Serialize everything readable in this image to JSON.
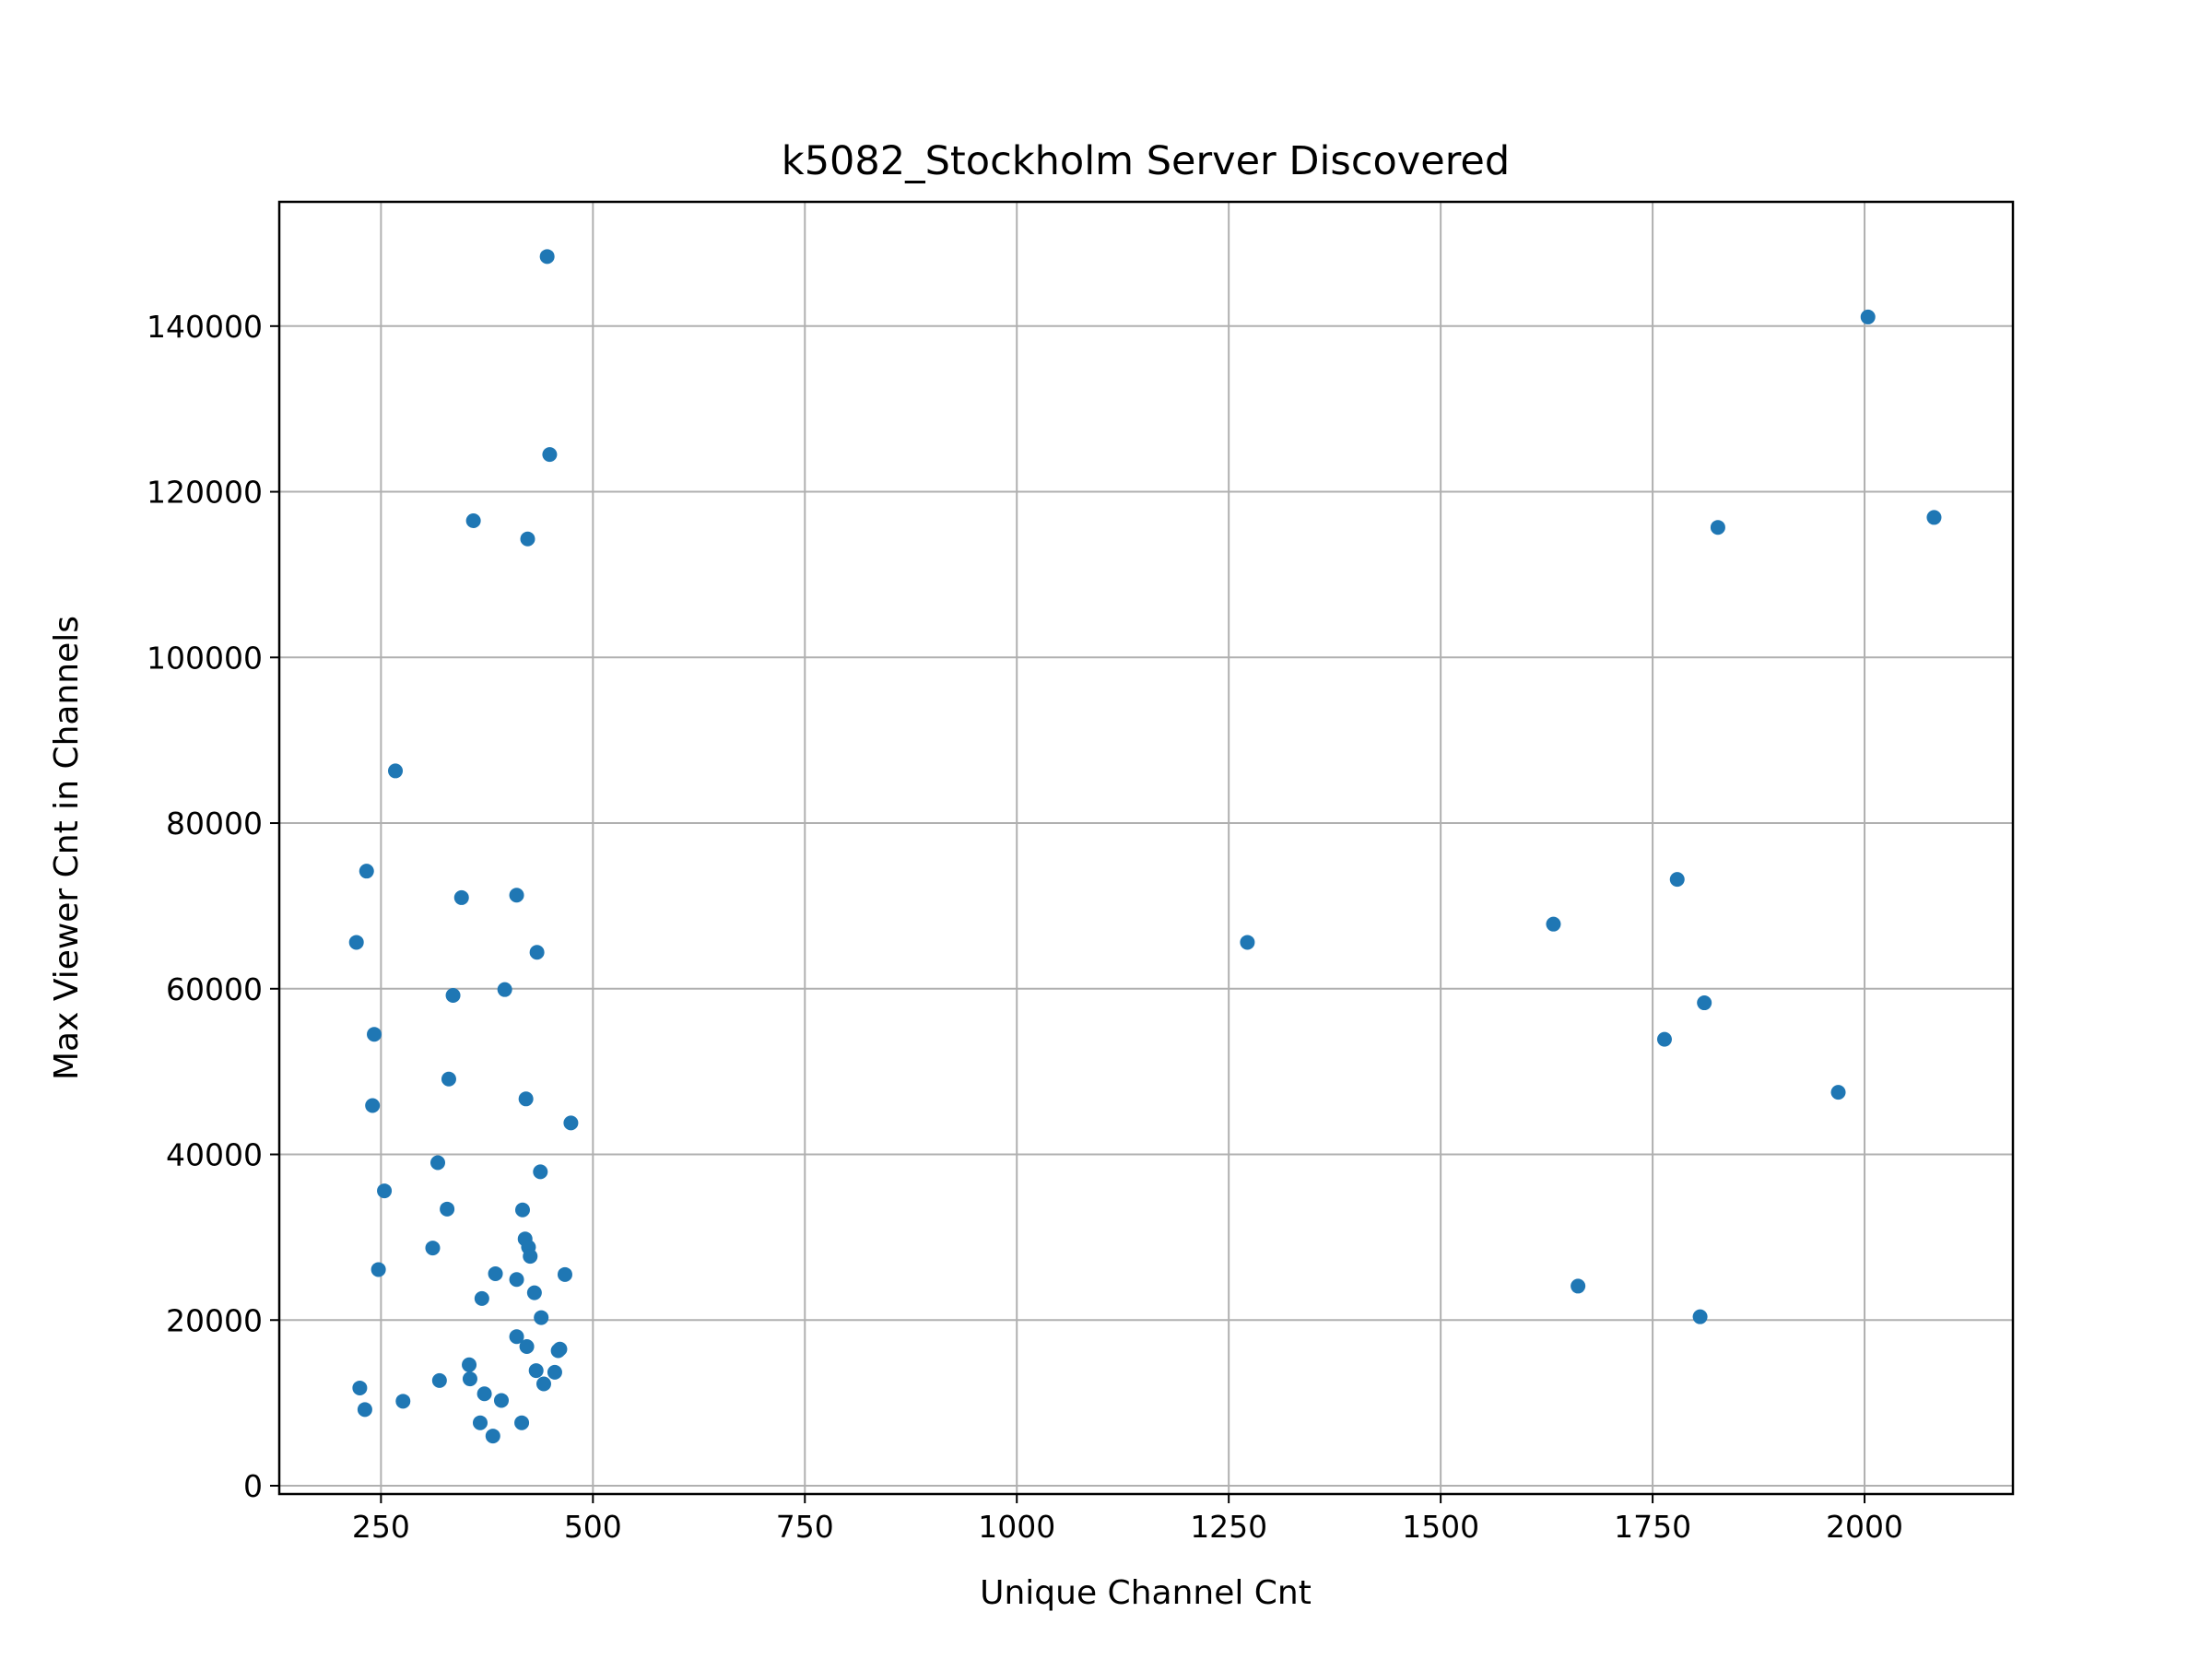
{
  "chart_data": {
    "type": "scatter",
    "title": "k5082_Stockholm Server Discovered",
    "xlabel": "Unique Channel Cnt",
    "ylabel": "Max Viewer Cnt in Channels",
    "xlim": [
      130,
      2175
    ],
    "ylim": [
      -1000,
      155000
    ],
    "xticks": [
      250,
      500,
      750,
      1000,
      1250,
      1500,
      1750,
      2000
    ],
    "yticks": [
      0,
      20000,
      40000,
      60000,
      80000,
      100000,
      120000,
      140000
    ],
    "grid": true,
    "marker_color": "#1f77b4",
    "points": [
      [
        446,
        148400
      ],
      [
        449,
        124500
      ],
      [
        359,
        116500
      ],
      [
        423,
        114300
      ],
      [
        267,
        86300
      ],
      [
        233,
        74200
      ],
      [
        345,
        71000
      ],
      [
        410,
        71300
      ],
      [
        221,
        65600
      ],
      [
        434,
        64400
      ],
      [
        335,
        59200
      ],
      [
        396,
        59900
      ],
      [
        242,
        54500
      ],
      [
        330,
        49100
      ],
      [
        421,
        46700
      ],
      [
        240,
        45900
      ],
      [
        474,
        43800
      ],
      [
        317,
        39000
      ],
      [
        438,
        37900
      ],
      [
        254,
        35600
      ],
      [
        328,
        33400
      ],
      [
        417,
        33300
      ],
      [
        420,
        29800
      ],
      [
        311,
        28700
      ],
      [
        424,
        28800
      ],
      [
        426,
        27700
      ],
      [
        247,
        26100
      ],
      [
        385,
        25600
      ],
      [
        410,
        24900
      ],
      [
        467,
        25500
      ],
      [
        431,
        23300
      ],
      [
        369,
        22600
      ],
      [
        439,
        20300
      ],
      [
        410,
        18000
      ],
      [
        422,
        16800
      ],
      [
        461,
        16500
      ],
      [
        459,
        16300
      ],
      [
        354,
        14600
      ],
      [
        433,
        13900
      ],
      [
        455,
        13700
      ],
      [
        355,
        12900
      ],
      [
        319,
        12700
      ],
      [
        442,
        12300
      ],
      [
        225,
        11800
      ],
      [
        372,
        11100
      ],
      [
        392,
        10300
      ],
      [
        276,
        10200
      ],
      [
        231,
        9200
      ],
      [
        367,
        7600
      ],
      [
        416,
        7600
      ],
      [
        382,
        6000
      ],
      [
        1272,
        65600
      ],
      [
        1633,
        67800
      ],
      [
        1779,
        73200
      ],
      [
        1811,
        58300
      ],
      [
        1764,
        53900
      ],
      [
        1969,
        47500
      ],
      [
        1662,
        24100
      ],
      [
        1806,
        20400
      ],
      [
        2004,
        141100
      ],
      [
        2082,
        116900
      ],
      [
        1827,
        115700
      ]
    ]
  }
}
